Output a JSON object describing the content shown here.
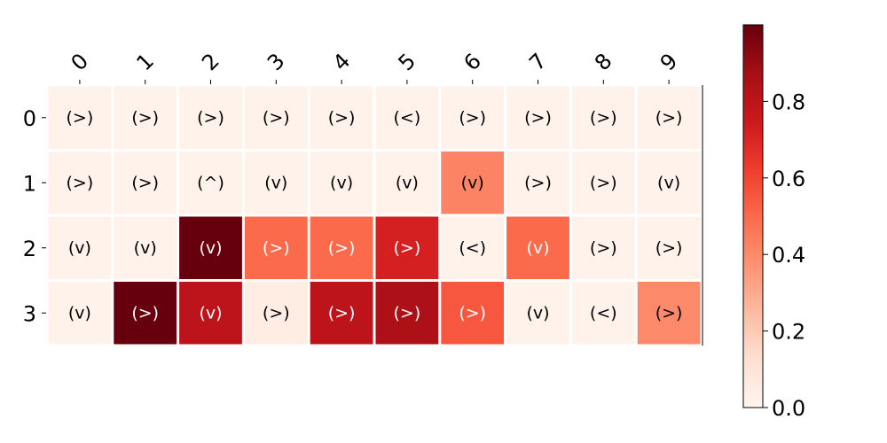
{
  "chart_data": {
    "type": "heatmap",
    "title": "",
    "x_tick_labels": [
      "0",
      "1",
      "2",
      "3",
      "4",
      "5",
      "6",
      "7",
      "8",
      "9"
    ],
    "y_tick_labels": [
      "0",
      "1",
      "2",
      "3"
    ],
    "values": [
      [
        0.02,
        0.02,
        0.02,
        0.02,
        0.02,
        0.02,
        0.02,
        0.02,
        0.02,
        0.02
      ],
      [
        0.02,
        0.02,
        0.02,
        0.02,
        0.02,
        0.02,
        0.42,
        0.02,
        0.02,
        0.02
      ],
      [
        0.02,
        0.02,
        1.0,
        0.5,
        0.5,
        0.72,
        0.02,
        0.5,
        0.02,
        0.02
      ],
      [
        0.02,
        1.0,
        0.8,
        0.05,
        0.8,
        0.85,
        0.55,
        0.02,
        0.02,
        0.4
      ]
    ],
    "annotations": [
      [
        "(>)",
        "(>)",
        "(>)",
        "(>)",
        "(>)",
        "(<)",
        "(>)",
        "(>)",
        "(>)",
        "(>)"
      ],
      [
        "(>)",
        "(>)",
        "(^)",
        "(v)",
        "(v)",
        "(v)",
        "(v)",
        "(>)",
        "(>)",
        "(v)"
      ],
      [
        "(v)",
        "(v)",
        "(v)",
        "(>)",
        "(>)",
        "(>)",
        "(<)",
        "(v)",
        "(>)",
        "(>)"
      ],
      [
        "(v)",
        "(>)",
        "(v)",
        "(>)",
        "(>)",
        "(>)",
        "(>)",
        "(v)",
        "(<)",
        "(>)"
      ]
    ],
    "colorbar": {
      "range": [
        0.0,
        1.0
      ],
      "ticks": [
        0.0,
        0.2,
        0.4,
        0.6,
        0.8
      ],
      "tick_labels": [
        "0.0",
        "0.2",
        "0.4",
        "0.6",
        "0.8"
      ]
    },
    "colormap": "Reds",
    "grid": false,
    "x_ticks_position": "top"
  }
}
